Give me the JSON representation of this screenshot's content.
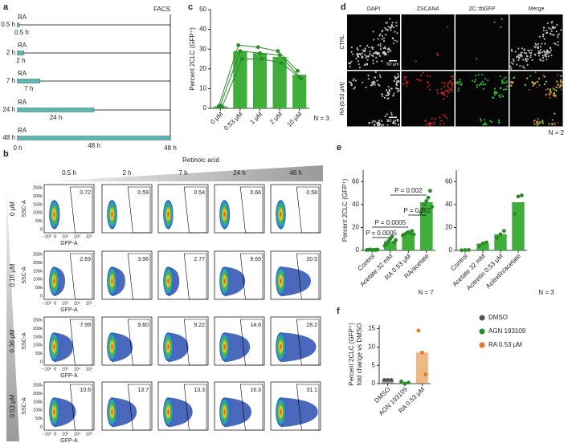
{
  "panel_a": {
    "letter": "a",
    "facs": "FACS",
    "treatment": "RA",
    "start": "0 h",
    "end": "48 h",
    "max_hours": 48,
    "rows": [
      {
        "label": "0.5 h",
        "hours": 0.5,
        "duration": "0.5 h"
      },
      {
        "label": "2 h",
        "hours": 2,
        "duration": "2 h"
      },
      {
        "label": "7 h",
        "hours": 7,
        "duration": "7 h"
      },
      {
        "label": "24 h",
        "hours": 24,
        "duration": "24 h"
      },
      {
        "label": "48 h",
        "hours": 48,
        "duration": "48 h"
      }
    ]
  },
  "panel_b": {
    "letter": "b",
    "header": "Retinoic acid",
    "columns": [
      "0.5 h",
      "2 h",
      "7 h",
      "24 h",
      "48 h"
    ],
    "rows": [
      "0 μM",
      "0.16 μM",
      "0.36 μM",
      "0.53 μM"
    ],
    "values": [
      [
        0.72,
        0.59,
        0.54,
        0.66,
        0.58
      ],
      [
        2.69,
        3.96,
        2.77,
        9.69,
        20.5
      ],
      [
        7.99,
        9.6,
        9.22,
        14.6,
        28.2
      ],
      [
        10.6,
        13.7,
        13.3,
        16.3,
        31.1
      ]
    ],
    "value_labels": [
      [
        "0.72",
        "0.59",
        "0.54",
        "0.66",
        "0.58"
      ],
      [
        "2.69",
        "3.96",
        "2.77",
        "9.69",
        "20.5"
      ],
      [
        "7.99",
        "9.60",
        "9.22",
        "14.6",
        "28.2"
      ],
      [
        "10.6",
        "13.7",
        "13.3",
        "16.3",
        "31.1"
      ]
    ],
    "y_label": "SSC-A",
    "x_label": "GFP-A",
    "y_ticks": [
      "250k",
      "200k",
      "150k",
      "100k",
      "50k",
      "0"
    ],
    "x_ticks": [
      "−10³",
      "0",
      "10³",
      "10⁴",
      "10⁵"
    ]
  },
  "panel_c": {
    "letter": "c",
    "type": "bar",
    "y_label": "Percent 2CLC (GFP⁺)",
    "categories": [
      "0 μM",
      "0.53 μM",
      "1 μM",
      "2 μM",
      "10 μM"
    ],
    "values": [
      1,
      29,
      28,
      26,
      17
    ],
    "points": [
      [
        1,
        1.5,
        0.8
      ],
      [
        32,
        29,
        25
      ],
      [
        31,
        28,
        25
      ],
      [
        29,
        27,
        23
      ],
      [
        19,
        16,
        15
      ]
    ],
    "connect_points": true,
    "ylim": [
      0,
      50
    ],
    "yticks": [
      0,
      10,
      20,
      30,
      40,
      50
    ],
    "color": "#3fae3a",
    "point_color": "#2a8a2a",
    "note": "N = 3"
  },
  "panel_d": {
    "letter": "d",
    "channels": [
      "DAPI",
      "ZSCAN4",
      "2C::tbGFP",
      "Merge"
    ],
    "conditions": [
      "CTRL",
      "RA (0.53 μM)"
    ],
    "scale_bar": "50 μm",
    "note": "N = 2"
  },
  "panel_e": {
    "letter": "e",
    "charts": [
      {
        "type": "bar",
        "y_label": "Percent 2CLC (GFP⁺)",
        "categories": [
          "Control",
          "Acetate 32 mM",
          "RA 0.53 μM",
          "RA/acetate"
        ],
        "values": [
          0.5,
          8,
          15,
          42
        ],
        "points": [
          [
            0.3,
            0.5,
            0.8,
            0.2,
            0.6,
            0.4,
            0.7
          ],
          [
            4,
            6,
            8,
            10,
            12,
            7,
            9
          ],
          [
            13,
            14,
            15,
            16,
            15,
            17,
            14
          ],
          [
            33,
            36,
            40,
            43,
            46,
            52,
            38
          ]
        ],
        "ylim": [
          0,
          70
        ],
        "yticks": [
          0,
          20,
          40,
          60
        ],
        "color": "#3fae3a",
        "point_color": "#2a8a2a",
        "note": "N = 7",
        "annotations": [
          {
            "label": "P = 0.002",
            "groups": [
              1,
              3
            ]
          },
          {
            "label": "P = 0.002",
            "groups": [
              2,
              3
            ]
          },
          {
            "label": "P = 0.0005",
            "groups": [
              0,
              2
            ]
          },
          {
            "label": "P = 0.0005",
            "groups": [
              0,
              1
            ]
          }
        ]
      },
      {
        "type": "bar",
        "categories": [
          "Control",
          "Acetate 32 mM",
          "Acitretin 0.53 μM",
          "Acitretin/acetate"
        ],
        "values": [
          0.3,
          6,
          14,
          42
        ],
        "points": [
          [
            0.2,
            0.3,
            0.4
          ],
          [
            4,
            6,
            7
          ],
          [
            11,
            14,
            17
          ],
          [
            32,
            47,
            48
          ]
        ],
        "ylim": [
          0,
          70
        ],
        "yticks": [
          0,
          20,
          40,
          60
        ],
        "color": "#3fae3a",
        "point_color": "#2a8a2a",
        "note": "N = 3"
      }
    ]
  },
  "panel_f": {
    "letter": "f",
    "type": "bar",
    "y_label": [
      "Percent 2CLC (GFP⁺)",
      "fold change vs DMSO"
    ],
    "categories": [
      "DMSO",
      "AGN 193109",
      "RA 0.53 μM"
    ],
    "values": [
      1,
      0.3,
      8.5
    ],
    "points": [
      [
        1,
        1,
        1
      ],
      [
        0.6,
        0,
        0.3
      ],
      [
        14.5,
        8.5,
        2.5
      ]
    ],
    "ylim": [
      0,
      16
    ],
    "yticks": [
      0,
      5,
      10,
      15
    ],
    "colors": [
      "#555555",
      "#2a8a2a",
      "#e07b22"
    ],
    "legend": "right"
  }
}
